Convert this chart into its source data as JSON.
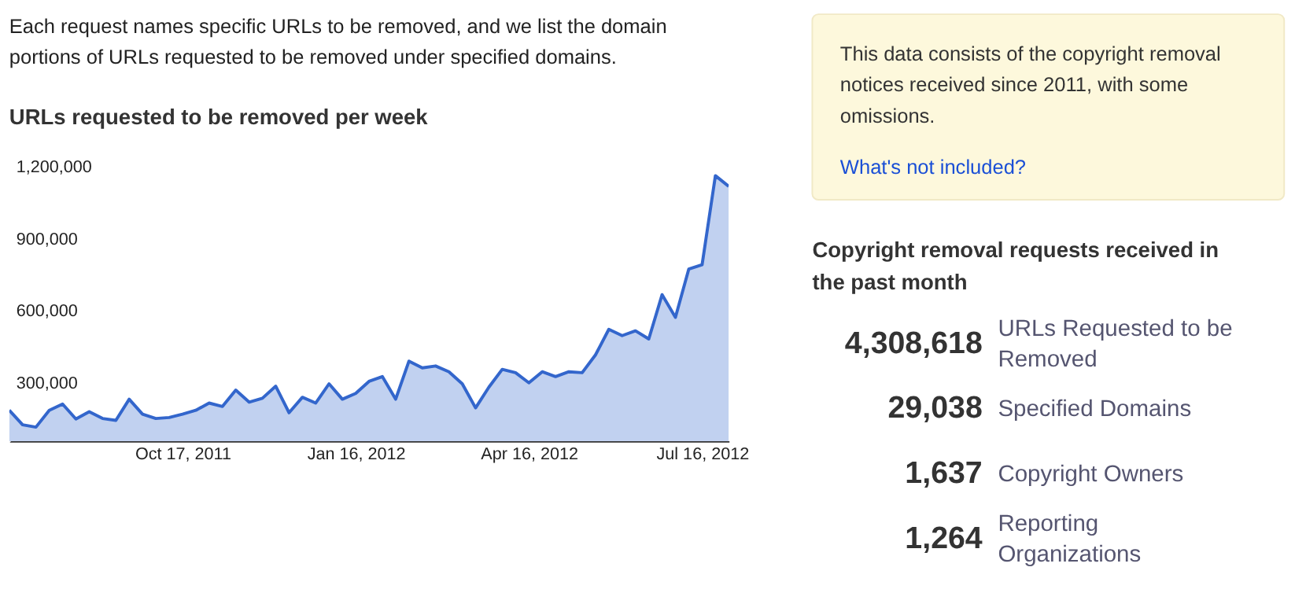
{
  "chart_data": [
    {
      "type": "area",
      "title": "URLs requested to be removed per week",
      "annotations": [
        "Each request names specific URLs to be removed, and we list the domain portions of URLs requested to be removed under specified domains."
      ],
      "x": [
        "2011-07-18",
        "2011-07-25",
        "2011-08-01",
        "2011-08-08",
        "2011-08-15",
        "2011-08-22",
        "2011-08-29",
        "2011-09-05",
        "2011-09-12",
        "2011-09-19",
        "2011-09-26",
        "2011-10-03",
        "2011-10-10",
        "2011-10-17",
        "2011-10-24",
        "2011-10-31",
        "2011-11-07",
        "2011-11-14",
        "2011-11-21",
        "2011-11-28",
        "2011-12-05",
        "2011-12-12",
        "2011-12-19",
        "2011-12-26",
        "2012-01-02",
        "2012-01-09",
        "2012-01-16",
        "2012-01-23",
        "2012-01-30",
        "2012-02-06",
        "2012-02-13",
        "2012-02-20",
        "2012-02-27",
        "2012-03-05",
        "2012-03-12",
        "2012-03-19",
        "2012-03-26",
        "2012-04-02",
        "2012-04-09",
        "2012-04-16",
        "2012-04-23",
        "2012-04-30",
        "2012-05-07",
        "2012-05-14",
        "2012-05-21",
        "2012-05-28",
        "2012-06-04",
        "2012-06-11",
        "2012-06-18",
        "2012-06-25",
        "2012-07-02",
        "2012-07-09",
        "2012-07-16",
        "2012-07-23",
        "2012-07-30"
      ],
      "series": [
        {
          "color": "#3366cc",
          "values": [
            188000,
            128000,
            118000,
            188000,
            214000,
            152000,
            182000,
            154000,
            146000,
            234000,
            172000,
            154000,
            158000,
            172000,
            188000,
            218000,
            204000,
            272000,
            222000,
            238000,
            288000,
            178000,
            242000,
            218000,
            298000,
            234000,
            258000,
            308000,
            328000,
            234000,
            392000,
            364000,
            372000,
            348000,
            298000,
            198000,
            284000,
            358000,
            344000,
            302000,
            348000,
            328000,
            348000,
            344000,
            418000,
            524000,
            498000,
            518000,
            484000,
            668000,
            574000,
            774000,
            792000,
            1162000,
            1118000
          ]
        }
      ],
      "xlim": [
        "2011-07-18",
        "2012-07-30"
      ],
      "ylim": [
        60000,
        1280000
      ],
      "xticks": [
        {
          "value": "2011-10-17",
          "label": "Oct 17, 2011"
        },
        {
          "value": "2012-01-16",
          "label": "Jan 16, 2012"
        },
        {
          "value": "2012-04-16",
          "label": "Apr 16, 2012"
        },
        {
          "value": "2012-07-16",
          "label": "Jul 16, 2012"
        }
      ],
      "yticks": [
        {
          "value": 300000,
          "label": "300,000"
        },
        {
          "value": 600000,
          "label": "600,000"
        },
        {
          "value": 900000,
          "label": "900,000"
        },
        {
          "value": 1200000,
          "label": "1,200,000"
        }
      ],
      "grid": false
    },
    {
      "type": "other",
      "title": "Copyright removal requests received in the past month",
      "annotations": [
        "This data consists of the copyright removal notices received since 2011, with some omissions.",
        "What's not included?",
        "4,308,618",
        "URLs Requested to be Removed",
        "29,038",
        "Specified Domains",
        "1,637",
        "Copyright Owners",
        "1,264",
        "Reporting Organizations"
      ]
    }
  ]
}
